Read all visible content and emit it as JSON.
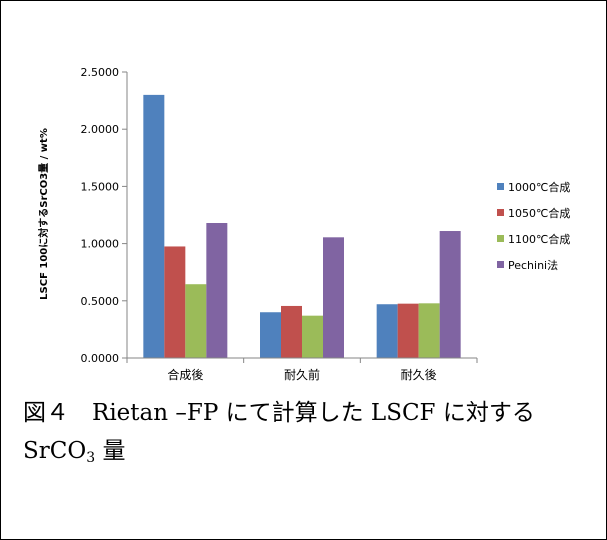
{
  "chart_data": {
    "type": "bar",
    "categories": [
      "合成後",
      "耐久前",
      "耐久後"
    ],
    "series": [
      {
        "name": "1000℃合成",
        "color": "#4f81bd",
        "values": [
          2.3,
          0.4,
          0.47
        ]
      },
      {
        "name": "1050℃合成",
        "color": "#c0504d",
        "values": [
          0.975,
          0.455,
          0.475
        ]
      },
      {
        "name": "1100℃合成",
        "color": "#9bbb59",
        "values": [
          0.645,
          0.37,
          0.478
        ]
      },
      {
        "name": "Pechini法",
        "color": "#8064a2",
        "values": [
          1.18,
          1.055,
          1.11
        ]
      }
    ],
    "ylabel": "LSCF 100に対するSrCO3量 / wt%",
    "ylim": [
      0,
      2.5
    ],
    "yticks": [
      "0.0000",
      "0.5000",
      "1.0000",
      "1.5000",
      "2.0000",
      "2.5000"
    ],
    "grid": false,
    "legend_position": "right"
  },
  "caption": {
    "line1": "図４　Rietan –FP にて計算した LSCF に対する",
    "line2_prefix": "SrCO",
    "line2_sub": "3",
    "line2_suffix": " 量"
  }
}
